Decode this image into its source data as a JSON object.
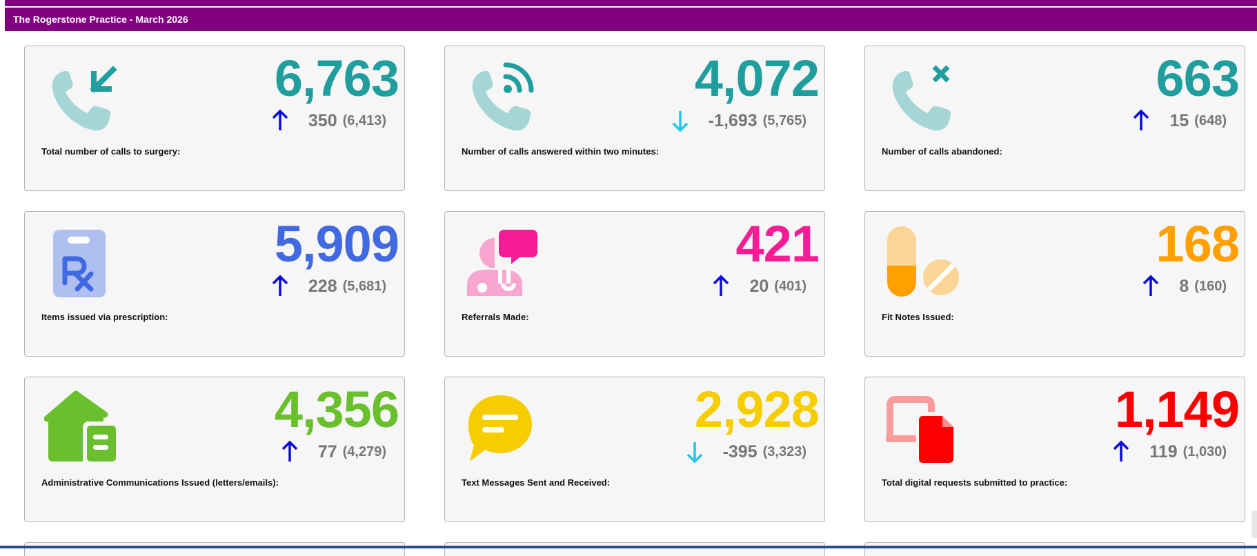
{
  "header": {
    "title": "The Rogerstone Practice - March 2026"
  },
  "colors": {
    "header_bg": "#800080",
    "arrow_up": "#0a0adc",
    "arrow_down": "#22c6e8",
    "teal": "#209e9e",
    "teal_light": "#a5d6d5",
    "blue": "#4169e1",
    "blue_light": "#aebff0",
    "pink": "#f51c96",
    "pink_light": "#f7a6cf",
    "orange": "#ff9f00",
    "orange_light": "#fbd595",
    "green": "#6abf2c",
    "yellow": "#f5cd00",
    "red": "#fb0000",
    "red_light": "#f89c9c"
  },
  "cards": [
    {
      "label": "Total number of calls to surgery:",
      "value": "6,763",
      "delta": "350",
      "previous": "(6,413)",
      "trend": "up",
      "icon": "phone-incoming-icon",
      "color": "#209e9e"
    },
    {
      "label": "Number of calls answered within two minutes:",
      "value": "4,072",
      "delta": "-1,693",
      "previous": "(5,765)",
      "trend": "down",
      "icon": "phone-signal-icon",
      "color": "#209e9e"
    },
    {
      "label": "Number of calls abandoned:",
      "value": "663",
      "delta": "15",
      "previous": "(648)",
      "trend": "up",
      "icon": "phone-missed-icon",
      "color": "#209e9e"
    },
    {
      "label": "Items issued via prescription:",
      "value": "5,909",
      "delta": "228",
      "previous": "(5,681)",
      "trend": "up",
      "icon": "prescription-clipboard-icon",
      "color": "#4169e1"
    },
    {
      "label": "Referrals Made:",
      "value": "421",
      "delta": "20",
      "previous": "(401)",
      "trend": "up",
      "icon": "doctor-message-icon",
      "color": "#f51c96"
    },
    {
      "label": "Fit Notes Issued:",
      "value": "168",
      "delta": "8",
      "previous": "(160)",
      "trend": "up",
      "icon": "pills-icon",
      "color": "#ff9f00"
    },
    {
      "label": "Administrative Communications Issued (letters/emails):",
      "value": "4,356",
      "delta": "77",
      "previous": "(4,279)",
      "trend": "up",
      "icon": "house-letter-icon",
      "color": "#6abf2c"
    },
    {
      "label": "Text Messages Sent and Received:",
      "value": "2,928",
      "delta": "-395",
      "previous": "(3,323)",
      "trend": "down",
      "icon": "chat-bubble-icon",
      "color": "#f5cd00"
    },
    {
      "label": "Total digital requests submitted to practice:",
      "value": "1,149",
      "delta": "119",
      "previous": "(1,030)",
      "trend": "up",
      "icon": "digital-document-icon",
      "color": "#fb0000"
    }
  ]
}
